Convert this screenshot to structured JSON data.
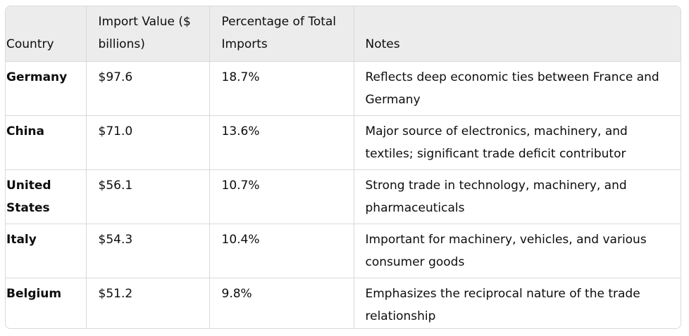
{
  "table": {
    "headers": {
      "country": "Country",
      "import_value": "Import Value ($ billions)",
      "percentage": "Percentage of Total Imports",
      "notes": "Notes"
    },
    "rows": [
      {
        "country": "Germany",
        "import_value": "$97.6",
        "percentage": "18.7%",
        "notes": "Reflects deep economic ties between France and Germany"
      },
      {
        "country": "China",
        "import_value": "$71.0",
        "percentage": "13.6%",
        "notes": "Major source of electronics, machinery, and textiles; significant trade deficit contributor"
      },
      {
        "country": "United States",
        "import_value": "$56.1",
        "percentage": "10.7%",
        "notes": "Strong trade in technology, machinery, and pharmaceuticals"
      },
      {
        "country": "Italy",
        "import_value": "$54.3",
        "percentage": "10.4%",
        "notes": "Important for machinery, vehicles, and various consumer goods"
      },
      {
        "country": "Belgium",
        "import_value": "$51.2",
        "percentage": "9.8%",
        "notes": "Emphasizes the reciprocal nature of the trade relationship"
      }
    ]
  }
}
